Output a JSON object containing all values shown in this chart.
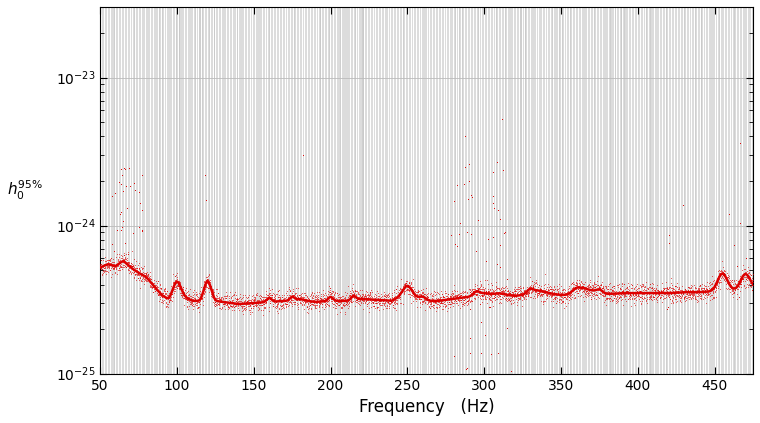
{
  "freq_min": 50,
  "freq_max": 475,
  "ymin": 1e-25,
  "ymax": 3e-23,
  "xlabel": "Frequency   (Hz)",
  "ylabel": "h_0^{95%}",
  "line_color": "#dd0000",
  "dot_color": "#dd0000",
  "vline_color": "#c8c8c8",
  "background_color": "#ffffff",
  "grid_color": "#bbbbbb",
  "curve_base": [
    [
      50,
      5.2e-25
    ],
    [
      55,
      5.5e-25
    ],
    [
      60,
      5.3e-25
    ],
    [
      65,
      5.8e-25
    ],
    [
      70,
      5.2e-25
    ],
    [
      75,
      4.8e-25
    ],
    [
      80,
      4.5e-25
    ],
    [
      85,
      3.9e-25
    ],
    [
      90,
      3.4e-25
    ],
    [
      95,
      3.15e-25
    ],
    [
      100,
      3.75e-25
    ],
    [
      105,
      3.3e-25
    ],
    [
      110,
      3.1e-25
    ],
    [
      115,
      3.1e-25
    ],
    [
      120,
      3.7e-25
    ],
    [
      125,
      3.1e-25
    ],
    [
      130,
      3.05e-25
    ],
    [
      140,
      2.95e-25
    ],
    [
      150,
      3e-25
    ],
    [
      160,
      3.05e-25
    ],
    [
      170,
      3.1e-25
    ],
    [
      175,
      3.1e-25
    ],
    [
      180,
      3.2e-25
    ],
    [
      185,
      3.1e-25
    ],
    [
      190,
      3.05e-25
    ],
    [
      200,
      3.1e-25
    ],
    [
      210,
      3.1e-25
    ],
    [
      220,
      3.2e-25
    ],
    [
      230,
      3.15e-25
    ],
    [
      240,
      3.1e-25
    ],
    [
      245,
      3.3e-25
    ],
    [
      250,
      3.55e-25
    ],
    [
      255,
      3.3e-25
    ],
    [
      260,
      3.1e-25
    ],
    [
      270,
      3.1e-25
    ],
    [
      280,
      3.2e-25
    ],
    [
      290,
      3.3e-25
    ],
    [
      300,
      3.5e-25
    ],
    [
      305,
      3.45e-25
    ],
    [
      310,
      3.5e-25
    ],
    [
      315,
      3.4e-25
    ],
    [
      320,
      3.35e-25
    ],
    [
      325,
      3.4e-25
    ],
    [
      330,
      3.55e-25
    ],
    [
      335,
      3.65e-25
    ],
    [
      340,
      3.55e-25
    ],
    [
      345,
      3.45e-25
    ],
    [
      350,
      3.4e-25
    ],
    [
      355,
      3.4e-25
    ],
    [
      360,
      3.6e-25
    ],
    [
      365,
      3.75e-25
    ],
    [
      370,
      3.65e-25
    ],
    [
      375,
      3.5e-25
    ],
    [
      380,
      3.45e-25
    ],
    [
      390,
      3.5e-25
    ],
    [
      400,
      3.5e-25
    ],
    [
      410,
      3.5e-25
    ],
    [
      420,
      3.5e-25
    ],
    [
      430,
      3.55e-25
    ],
    [
      440,
      3.55e-25
    ],
    [
      450,
      3.6e-25
    ],
    [
      455,
      3.75e-25
    ],
    [
      460,
      3.7e-25
    ],
    [
      465,
      3.65e-25
    ],
    [
      470,
      3.7e-25
    ],
    [
      475,
      3.75e-25
    ]
  ]
}
